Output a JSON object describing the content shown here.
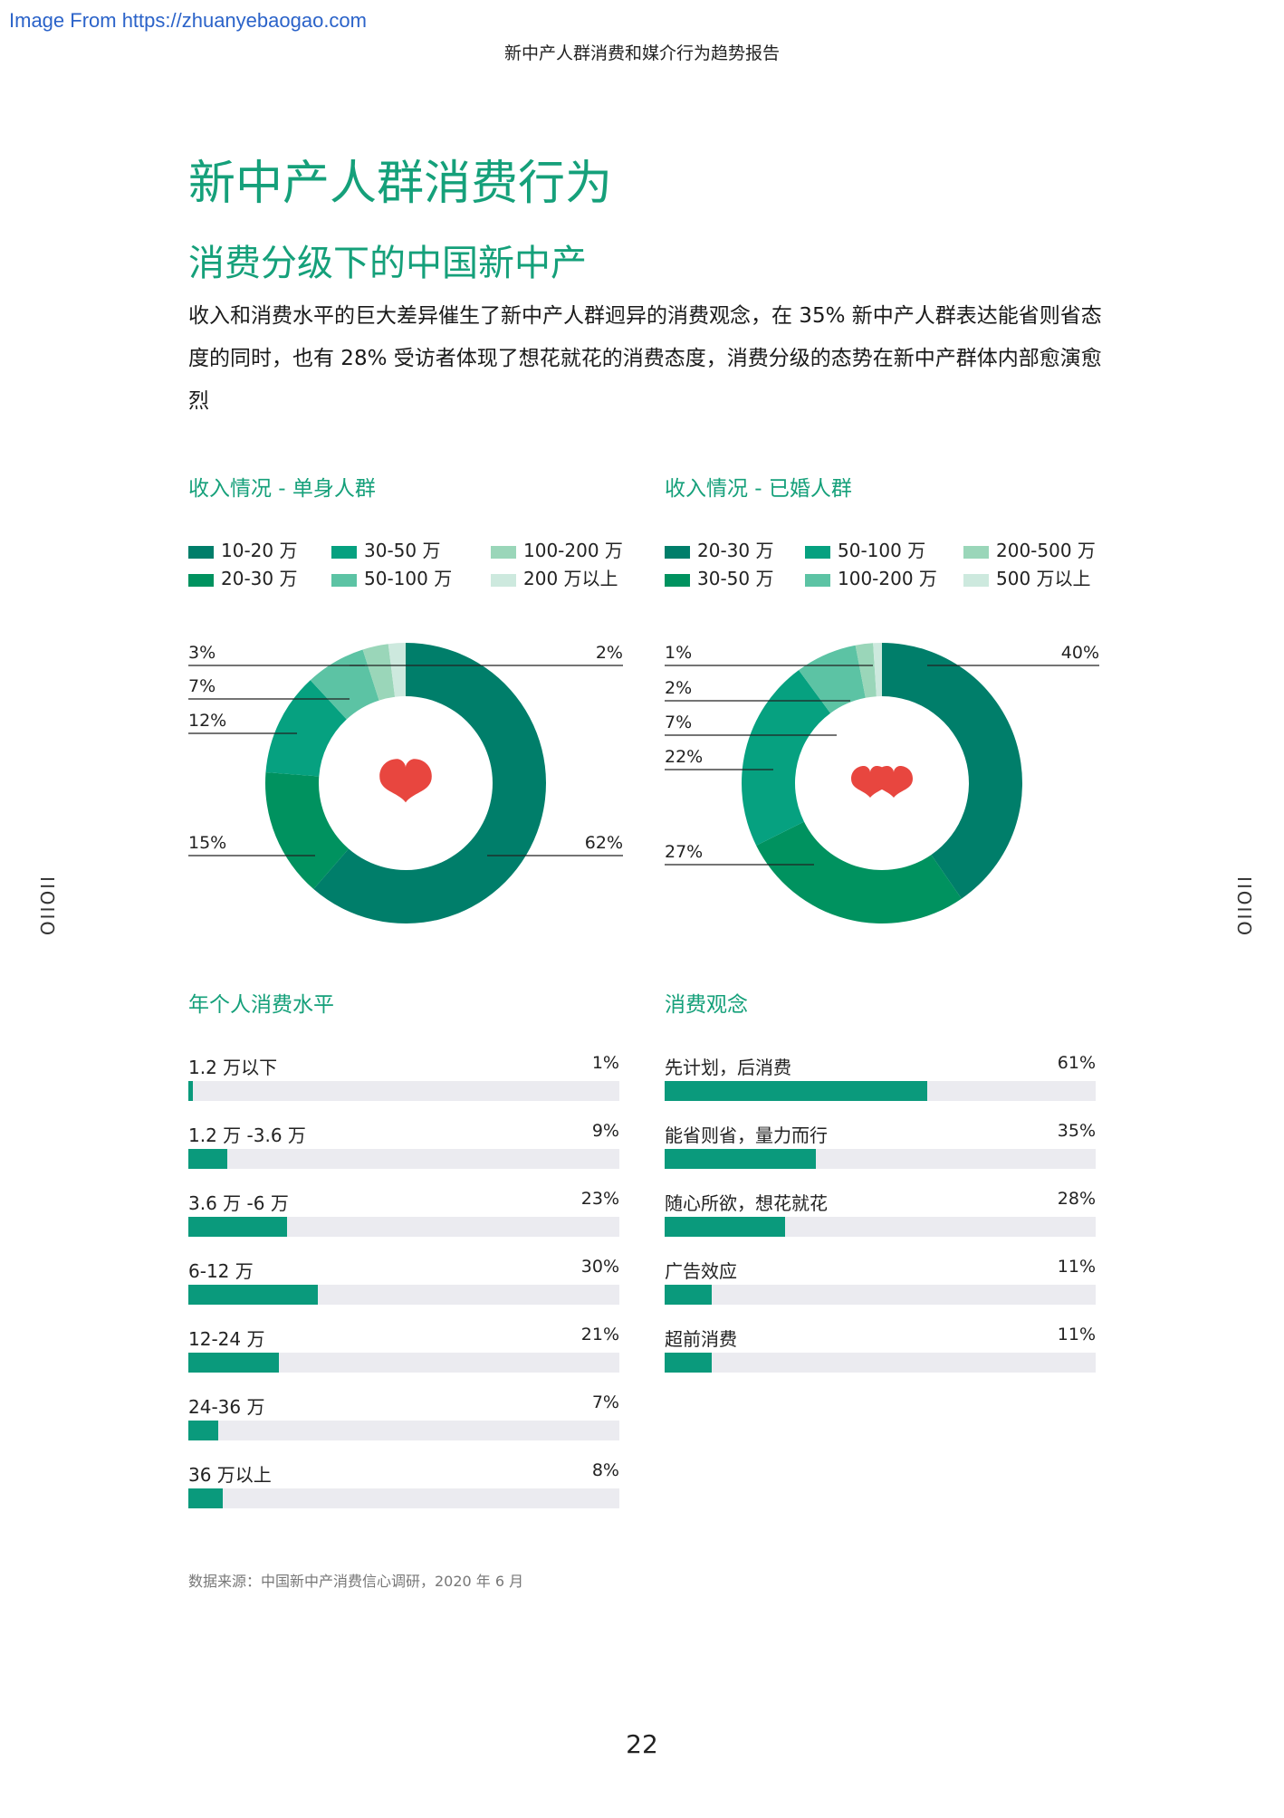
{
  "watermark": "Image From https://zhuanyebaogao.com",
  "header": "新中产人群消费和媒介行为趋势报告",
  "title": "新中产人群消费行为",
  "subtitle": "消费分级下的中国新中产",
  "intro": "收入和消费水平的巨大差异催生了新中产人群迥异的消费观念，在 35% 新中产人群表达能省则省态度的同时，也有 28% 受访者体现了想花就花的消费态度，消费分级的态势在新中产群体内部愈演愈烈",
  "side_mark": "IIOIIO",
  "page_number": "22",
  "source": "数据来源：中国新中产消费信心调研，2020 年 6 月",
  "colors": {
    "c1": "#007e6a",
    "c2": "#00925f",
    "c3": "#06a180",
    "c4": "#5cc3a4",
    "c5": "#9ad6b9",
    "c6": "#cde9de",
    "heart": "#e8463f",
    "accent": "#15a07a"
  },
  "chart_data": [
    {
      "type": "pie",
      "title": "收入情况 - 单身人群",
      "categories": [
        "10-20 万",
        "20-30 万",
        "30-50 万",
        "50-100 万",
        "100-200 万",
        "200 万以上"
      ],
      "values": [
        62,
        15,
        12,
        7,
        3,
        2
      ],
      "labels": [
        "62%",
        "15%",
        "12%",
        "7%",
        "3%",
        "2%"
      ],
      "icon": "single-heart-icon"
    },
    {
      "type": "pie",
      "title": "收入情况 - 已婚人群",
      "categories": [
        "20-30 万",
        "30-50 万",
        "50-100 万",
        "100-200 万",
        "200-500 万",
        "500 万以上"
      ],
      "values": [
        40,
        27,
        22,
        7,
        2,
        1
      ],
      "labels": [
        "40%",
        "27%",
        "22%",
        "7%",
        "2%",
        "1%"
      ],
      "icon": "double-heart-icon"
    },
    {
      "type": "bar",
      "title": "年个人消费水平",
      "categories": [
        "1.2 万以下",
        "1.2 万 -3.6 万",
        "3.6 万 -6 万",
        "6-12 万",
        "12-24 万",
        "24-36 万",
        "36 万以上"
      ],
      "values": [
        1,
        9,
        23,
        30,
        21,
        7,
        8
      ],
      "labels": [
        "1%",
        "9%",
        "23%",
        "30%",
        "21%",
        "7%",
        "8%"
      ],
      "xlim": [
        0,
        100
      ]
    },
    {
      "type": "bar",
      "title": "消费观念",
      "categories": [
        "先计划，后消费",
        "能省则省，量力而行",
        "随心所欲，想花就花",
        "广告效应",
        "超前消费"
      ],
      "values": [
        61,
        35,
        28,
        11,
        11
      ],
      "labels": [
        "61%",
        "35%",
        "28%",
        "11%",
        "11%"
      ],
      "xlim": [
        0,
        100
      ]
    }
  ]
}
